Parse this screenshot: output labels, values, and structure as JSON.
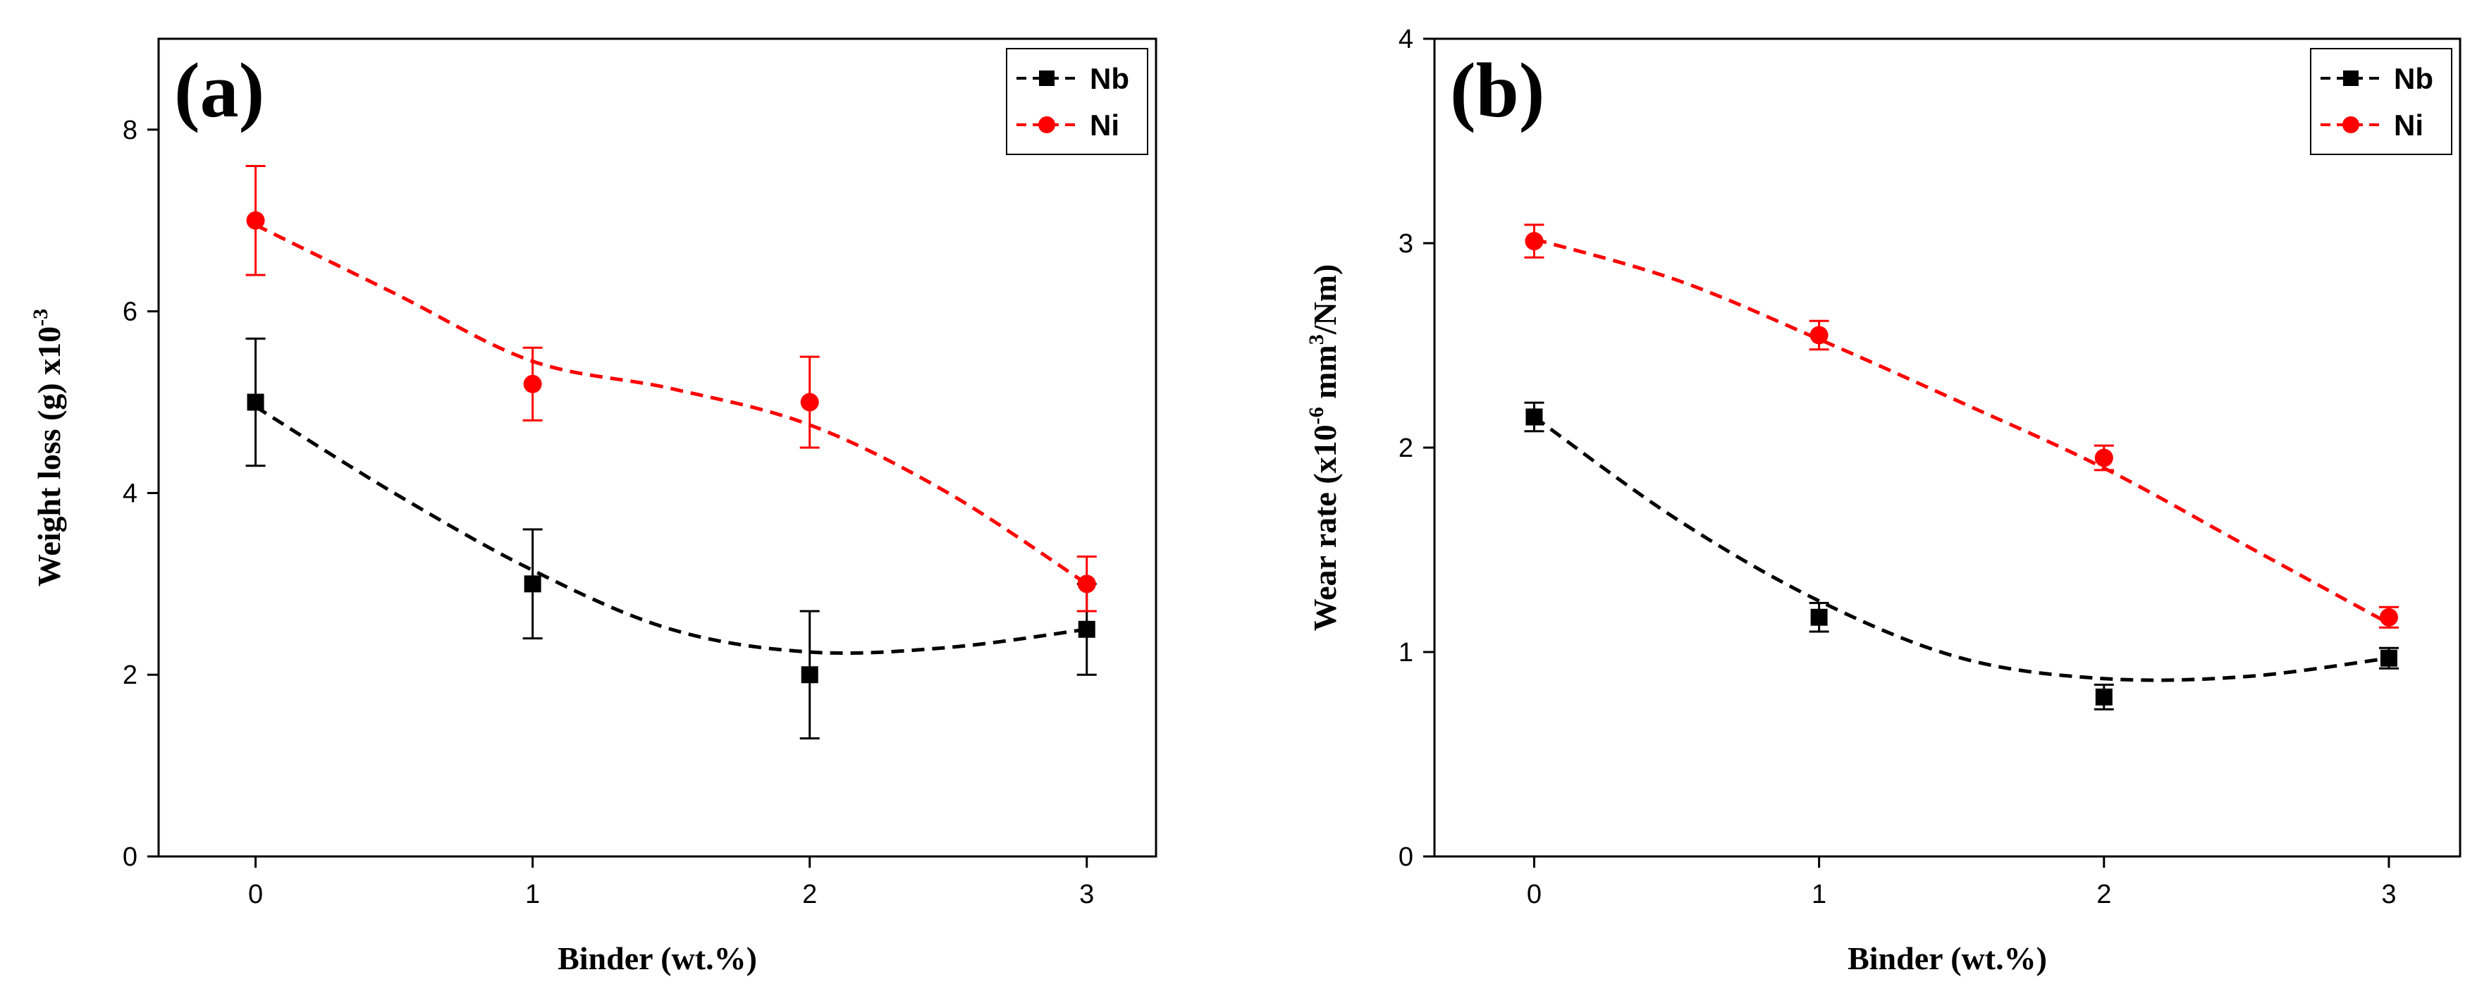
{
  "chart_data": [
    {
      "type": "line",
      "panel_label": "(a)",
      "xlabel": "Binder (wt.%)",
      "ylabel_main": "Weight loss (g) x10",
      "ylabel_sup": "-3",
      "xlim": [
        -0.35,
        3.25
      ],
      "ylim": [
        0,
        9
      ],
      "x_ticks": [
        0,
        1,
        2,
        3
      ],
      "x_tick_labels": [
        "0",
        "1",
        "2",
        "3"
      ],
      "y_ticks": [
        0,
        2,
        4,
        6,
        8
      ],
      "y_tick_labels": [
        "0",
        "2",
        "4",
        "6",
        "8"
      ],
      "x": [
        0,
        1,
        2,
        3
      ],
      "legend_position": "top-right",
      "series": [
        {
          "name": "Nb",
          "color": "#000000",
          "marker": "square",
          "values": [
            5.0,
            3.0,
            2.0,
            2.5
          ],
          "errors": [
            0.7,
            0.6,
            0.7,
            0.5
          ],
          "trend": [
            [
              0,
              4.95
            ],
            [
              0.5,
              4.0
            ],
            [
              1,
              3.15
            ],
            [
              1.5,
              2.5
            ],
            [
              2,
              2.25
            ],
            [
              2.5,
              2.3
            ],
            [
              3,
              2.5
            ]
          ]
        },
        {
          "name": "Ni",
          "color": "#ff0000",
          "marker": "circle",
          "values": [
            7.0,
            5.2,
            5.0,
            3.0
          ],
          "errors": [
            0.6,
            0.4,
            0.5,
            0.3
          ],
          "trend": [
            [
              0,
              6.95
            ],
            [
              0.5,
              6.2
            ],
            [
              1,
              5.45
            ],
            [
              1.5,
              5.15
            ],
            [
              2,
              4.75
            ],
            [
              2.5,
              4.0
            ],
            [
              3,
              3.0
            ]
          ]
        }
      ]
    },
    {
      "type": "line",
      "panel_label": "(b)",
      "xlabel": "Binder (wt.%)",
      "ylabel_main": "Wear rate (x10",
      "ylabel_sup": "-6",
      "ylabel_mid": " mm",
      "ylabel_sup2": "3",
      "ylabel_end": "/Nm)",
      "xlim": [
        -0.35,
        3.25
      ],
      "ylim": [
        0,
        4
      ],
      "x_ticks": [
        0,
        1,
        2,
        3
      ],
      "x_tick_labels": [
        "0",
        "1",
        "2",
        "3"
      ],
      "y_ticks": [
        0,
        1,
        2,
        3,
        4
      ],
      "y_tick_labels": [
        "0",
        "1",
        "2",
        "3",
        "4"
      ],
      "x": [
        0,
        1,
        2,
        3
      ],
      "legend_position": "top-right",
      "series": [
        {
          "name": "Nb",
          "color": "#000000",
          "marker": "square",
          "values": [
            2.15,
            1.17,
            0.78,
            0.97
          ],
          "errors": [
            0.07,
            0.07,
            0.06,
            0.05
          ],
          "trend": [
            [
              0,
              2.15
            ],
            [
              0.5,
              1.65
            ],
            [
              1,
              1.25
            ],
            [
              1.5,
              0.97
            ],
            [
              2,
              0.87
            ],
            [
              2.5,
              0.88
            ],
            [
              3,
              0.97
            ]
          ]
        },
        {
          "name": "Ni",
          "color": "#ff0000",
          "marker": "circle",
          "values": [
            3.01,
            2.55,
            1.95,
            1.17
          ],
          "errors": [
            0.08,
            0.07,
            0.06,
            0.05
          ],
          "trend": [
            [
              0,
              3.02
            ],
            [
              0.5,
              2.82
            ],
            [
              1,
              2.53
            ],
            [
              1.5,
              2.22
            ],
            [
              2,
              1.9
            ],
            [
              2.5,
              1.52
            ],
            [
              3,
              1.14
            ]
          ]
        }
      ]
    }
  ]
}
